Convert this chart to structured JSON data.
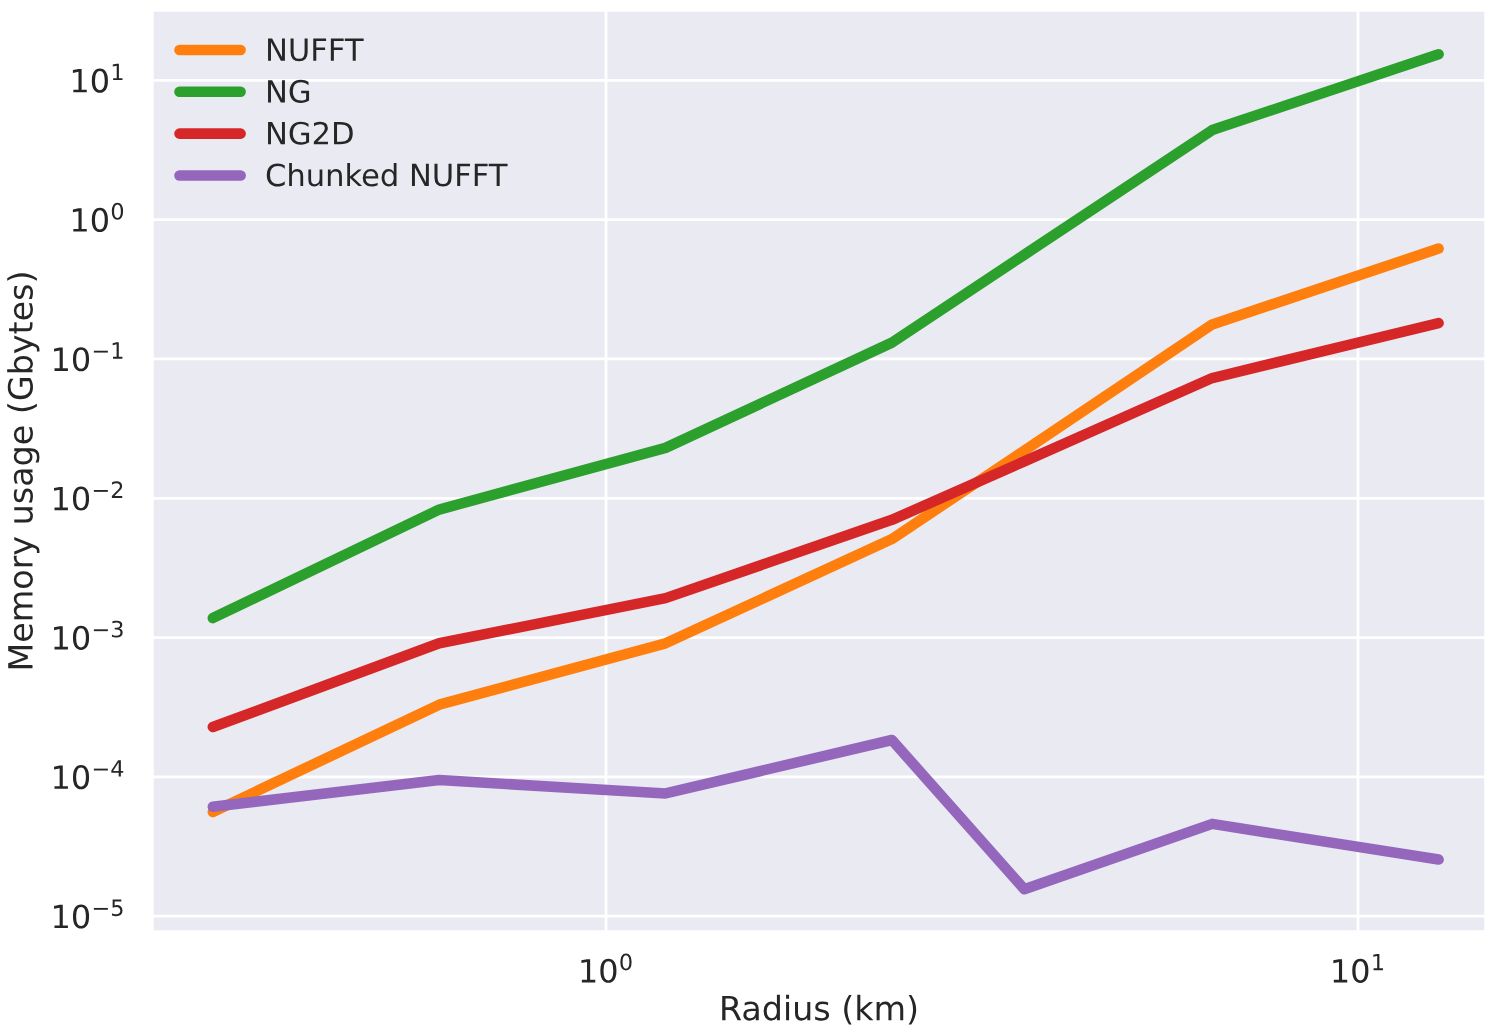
{
  "chart_data": {
    "type": "line",
    "xlabel": "Radius (km)",
    "ylabel": "Memory usage (Gbytes)",
    "log": "xy",
    "grid": true,
    "legend": "top left",
    "marker": "none",
    "line_style": "solid",
    "xlim": [
      0.249,
      14.8
    ],
    "ylim": [
      7.7e-06,
      32
    ],
    "xticks": [
      {
        "value": 1,
        "label": "10$^{0}$"
      },
      {
        "value": 10,
        "label": "10$^{1}$"
      }
    ],
    "yticks": [
      {
        "value": 1e-05,
        "label": "10$^{−5}$"
      },
      {
        "value": 0.0001,
        "label": "10$^{−4}$"
      },
      {
        "value": 0.001,
        "label": "10$^{−3}$"
      },
      {
        "value": 0.01,
        "label": "10$^{−2}$"
      },
      {
        "value": 0.1,
        "label": "10$^{−1}$"
      },
      {
        "value": 1,
        "label": "10$^{0}$"
      },
      {
        "value": 10,
        "label": "10$^{1}$"
      }
    ],
    "x": [
      0.3,
      0.6,
      1.2,
      2.4,
      3.6,
      6.4,
      12.8
    ],
    "series": [
      {
        "name": "NUFFT",
        "color": "#ff7f0e",
        "values": [
          5.6e-05,
          0.00033,
          0.00091,
          0.0051,
          0.022,
          0.177,
          0.62
        ]
      },
      {
        "name": "NG",
        "color": "#2ca02c",
        "values": [
          0.00138,
          0.0083,
          0.023,
          0.131,
          0.56,
          4.4,
          15.4
        ]
      },
      {
        "name": "NG2D",
        "color": "#d62728",
        "values": [
          0.000228,
          0.00091,
          0.00192,
          0.007,
          0.0184,
          0.073,
          0.181
        ]
      },
      {
        "name": "Chunked NUFFT",
        "color": "#9467bd",
        "values": [
          6.1e-05,
          9.5e-05,
          7.6e-05,
          0.000184,
          1.56e-05,
          4.6e-05,
          2.55e-05
        ]
      }
    ]
  }
}
